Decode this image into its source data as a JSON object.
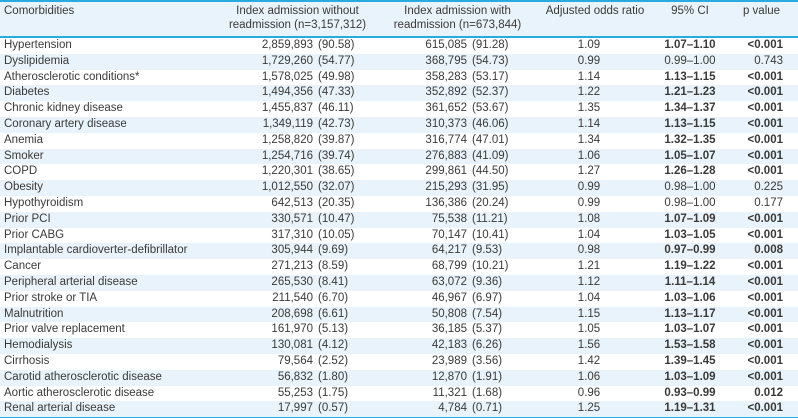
{
  "colors": {
    "accent_line": "#29abe2",
    "stripe_bg": "#e8f3fb",
    "text": "#3a3a3a",
    "row_bg": "#ffffff"
  },
  "table": {
    "columns": [
      "Comorbidities",
      "Index admission without readmission (n=3,157,312)",
      "Index admission with readmission (n=673,844)",
      "Adjusted odds ratio",
      "95% CI",
      "p value"
    ],
    "rows": [
      {
        "name": "Hypertension",
        "without_readmission": "2,859,893 (90.58)",
        "with_readmission": "615,085 (91.28)",
        "odds_ratio": "1.09",
        "ci": "1.07–1.10",
        "p": "<0.001",
        "significant": true
      },
      {
        "name": "Dyslipidemia",
        "without_readmission": "1,729,260 (54.77)",
        "with_readmission": "368,795 (54.73)",
        "odds_ratio": "0.99",
        "ci": "0.99–1.00",
        "p": "0.743",
        "significant": false
      },
      {
        "name": "Atherosclerotic conditions*",
        "without_readmission": "1,578,025 (49.98)",
        "with_readmission": "358,283 (53.17)",
        "odds_ratio": "1.14",
        "ci": "1.13–1.15",
        "p": "<0.001",
        "significant": true
      },
      {
        "name": "Diabetes",
        "without_readmission": "1,494,356 (47.33)",
        "with_readmission": "352,892 (52.37)",
        "odds_ratio": "1.22",
        "ci": "1.21–1.23",
        "p": "<0.001",
        "significant": true
      },
      {
        "name": "Chronic kidney disease",
        "without_readmission": "1,455,837 (46.11)",
        "with_readmission": "361,652 (53.67)",
        "odds_ratio": "1.35",
        "ci": "1.34–1.37",
        "p": "<0.001",
        "significant": true
      },
      {
        "name": "Coronary artery disease",
        "without_readmission": "1,349,119 (42.73)",
        "with_readmission": "310,373 (46.06)",
        "odds_ratio": "1.14",
        "ci": "1.13–1.15",
        "p": "<0.001",
        "significant": true
      },
      {
        "name": "Anemia",
        "without_readmission": "1,258,820 (39.87)",
        "with_readmission": "316,774 (47.01)",
        "odds_ratio": "1.34",
        "ci": "1.32–1.35",
        "p": "<0.001",
        "significant": true
      },
      {
        "name": "Smoker",
        "without_readmission": "1,254,716 (39.74)",
        "with_readmission": "276,883 (41.09)",
        "odds_ratio": "1.06",
        "ci": "1.05–1.07",
        "p": "<0.001",
        "significant": true
      },
      {
        "name": "COPD",
        "without_readmission": "1,220,301 (38.65)",
        "with_readmission": "299,861 (44.50)",
        "odds_ratio": "1.27",
        "ci": "1.26–1.28",
        "p": "<0.001",
        "significant": true
      },
      {
        "name": "Obesity",
        "without_readmission": "1,012,550 (32.07)",
        "with_readmission": "215,293 (31.95)",
        "odds_ratio": "0.99",
        "ci": "0.98–1.00",
        "p": "0.225",
        "significant": false
      },
      {
        "name": "Hypothyroidism",
        "without_readmission": "642,513 (20.35)",
        "with_readmission": "136,386 (20.24)",
        "odds_ratio": "0.99",
        "ci": "0.98–1.00",
        "p": "0.177",
        "significant": false
      },
      {
        "name": "Prior PCI",
        "without_readmission": "330,571 (10.47)",
        "with_readmission": "75,538 (11.21)",
        "odds_ratio": "1.08",
        "ci": "1.07–1.09",
        "p": "<0.001",
        "significant": true
      },
      {
        "name": "Prior CABG",
        "without_readmission": "317,310 (10.05)",
        "with_readmission": "70,147 (10.41)",
        "odds_ratio": "1.04",
        "ci": "1.03–1.05",
        "p": "<0.001",
        "significant": true
      },
      {
        "name": "Implantable cardioverter-defibrillator",
        "without_readmission": "305,944 (9.69)",
        "with_readmission": "64,217 (9.53)",
        "odds_ratio": "0.98",
        "ci": "0.97–0.99",
        "p": "0.008",
        "significant": true
      },
      {
        "name": "Cancer",
        "without_readmission": "271,213 (8.59)",
        "with_readmission": "68,799 (10.21)",
        "odds_ratio": "1.21",
        "ci": "1.19–1.22",
        "p": "<0.001",
        "significant": true
      },
      {
        "name": "Peripheral arterial disease",
        "without_readmission": "265,530 (8.41)",
        "with_readmission": "63,072 (9.36)",
        "odds_ratio": "1.12",
        "ci": "1.11–1.14",
        "p": "<0.001",
        "significant": true
      },
      {
        "name": "Prior stroke or TIA",
        "without_readmission": "211,540 (6.70)",
        "with_readmission": "46,967 (6.97)",
        "odds_ratio": "1.04",
        "ci": "1.03–1.06",
        "p": "<0.001",
        "significant": true
      },
      {
        "name": "Malnutrition",
        "without_readmission": "208,698 (6.61)",
        "with_readmission": "50,808 (7.54)",
        "odds_ratio": "1.15",
        "ci": "1.13–1.17",
        "p": "<0.001",
        "significant": true
      },
      {
        "name": "Prior valve replacement",
        "without_readmission": "161,970 (5.13)",
        "with_readmission": "36,185 (5.37)",
        "odds_ratio": "1.05",
        "ci": "1.03–1.07",
        "p": "<0.001",
        "significant": true
      },
      {
        "name": "Hemodialysis",
        "without_readmission": "130,081 (4.12)",
        "with_readmission": "42,183 (6.26)",
        "odds_ratio": "1.56",
        "ci": "1.53–1.58",
        "p": "<0.001",
        "significant": true
      },
      {
        "name": "Cirrhosis",
        "without_readmission": "79,564 (2.52)",
        "with_readmission": "23,989 (3.56)",
        "odds_ratio": "1.42",
        "ci": "1.39–1.45",
        "p": "<0.001",
        "significant": true
      },
      {
        "name": "Carotid atherosclerotic disease",
        "without_readmission": "56,832 (1.80)",
        "with_readmission": "12,870 (1.91)",
        "odds_ratio": "1.06",
        "ci": "1.03–1.09",
        "p": "<0.001",
        "significant": true
      },
      {
        "name": "Aortic atherosclerotic disease",
        "without_readmission": "55,253 (1.75)",
        "with_readmission": "11,321 (1.68)",
        "odds_ratio": "0.96",
        "ci": "0.93–0.99",
        "p": "0.012",
        "significant": true
      },
      {
        "name": "Renal arterial disease",
        "without_readmission": "17,997 (0.57)",
        "with_readmission": "4,784 (0.71)",
        "odds_ratio": "1.25",
        "ci": "1.19–1.31",
        "p": "<0.001",
        "significant": true
      }
    ]
  }
}
